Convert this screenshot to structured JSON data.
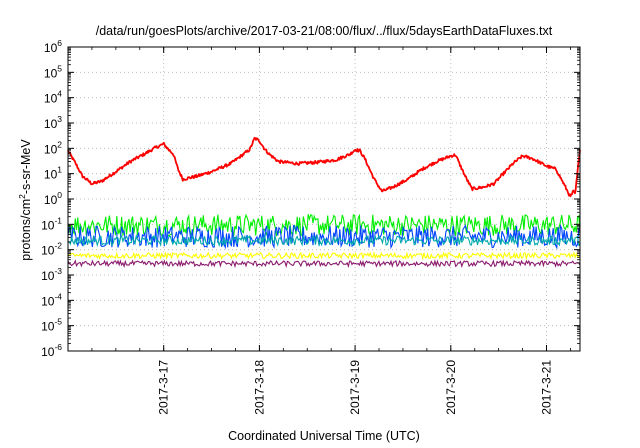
{
  "chart_data": {
    "type": "line",
    "title": "/data/run/goesPlots/archive/2017-03-21/08:00/flux/../flux/5daysEarthDataFluxes.txt",
    "xlabel": "Coordinated Universal Time (UTC)",
    "ylabel": {
      "pre": "protons/cm",
      "sup": "2",
      "post": "-s-sr-MeV"
    },
    "x_range_days": [
      0,
      5.35
    ],
    "x_ticks": [
      {
        "label": "2017-3-17",
        "day": 1.0
      },
      {
        "label": "2017-3-18",
        "day": 2.0
      },
      {
        "label": "2017-3-19",
        "day": 3.0
      },
      {
        "label": "2017-3-20",
        "day": 4.0
      },
      {
        "label": "2017-3-21",
        "day": 5.0
      }
    ],
    "y_scale": "log",
    "y_ticks": [
      {
        "base": "10",
        "exp": "-6",
        "log": -6
      },
      {
        "base": "10",
        "exp": "-5",
        "log": -5
      },
      {
        "base": "10",
        "exp": "-4",
        "log": -4
      },
      {
        "base": "10",
        "exp": "-3",
        "log": -3
      },
      {
        "base": "10",
        "exp": "-2",
        "log": -2
      },
      {
        "base": "10",
        "exp": "-1",
        "log": -1
      },
      {
        "base": "10",
        "exp": "0",
        "log": 0
      },
      {
        "base": "10",
        "exp": "1",
        "log": 1
      },
      {
        "base": "10",
        "exp": "2",
        "log": 2
      },
      {
        "base": "10",
        "exp": "3",
        "log": 3
      },
      {
        "base": "10",
        "exp": "4",
        "log": 4
      },
      {
        "base": "10",
        "exp": "5",
        "log": 5
      },
      {
        "base": "10",
        "exp": "6",
        "log": 6
      }
    ],
    "ylim": [
      1e-06,
      1000000.0
    ],
    "grid": true,
    "series": [
      {
        "color": "#ff0000",
        "noise_log": 0.06,
        "points": [
          [
            0.0,
            80
          ],
          [
            0.08,
            25
          ],
          [
            0.15,
            8
          ],
          [
            0.25,
            4
          ],
          [
            0.35,
            5
          ],
          [
            0.5,
            12
          ],
          [
            0.65,
            30
          ],
          [
            0.8,
            60
          ],
          [
            0.9,
            100
          ],
          [
            1.0,
            150
          ],
          [
            1.05,
            90
          ],
          [
            1.1,
            60
          ],
          [
            1.15,
            15
          ],
          [
            1.2,
            6
          ],
          [
            1.35,
            8
          ],
          [
            1.5,
            12
          ],
          [
            1.7,
            25
          ],
          [
            1.9,
            90
          ],
          [
            1.95,
            250
          ],
          [
            2.0,
            200
          ],
          [
            2.05,
            100
          ],
          [
            2.1,
            60
          ],
          [
            2.2,
            30
          ],
          [
            2.4,
            25
          ],
          [
            2.6,
            28
          ],
          [
            2.8,
            35
          ],
          [
            2.95,
            60
          ],
          [
            3.0,
            90
          ],
          [
            3.05,
            80
          ],
          [
            3.1,
            40
          ],
          [
            3.2,
            6
          ],
          [
            3.28,
            2
          ],
          [
            3.4,
            3
          ],
          [
            3.55,
            6
          ],
          [
            3.7,
            15
          ],
          [
            3.85,
            30
          ],
          [
            4.0,
            50
          ],
          [
            4.05,
            55
          ],
          [
            4.08,
            30
          ],
          [
            4.15,
            8
          ],
          [
            4.22,
            2.5
          ],
          [
            4.35,
            3
          ],
          [
            4.45,
            4
          ],
          [
            4.55,
            10
          ],
          [
            4.65,
            25
          ],
          [
            4.75,
            50
          ],
          [
            4.85,
            40
          ],
          [
            5.0,
            20
          ],
          [
            5.1,
            15
          ],
          [
            5.18,
            4
          ],
          [
            5.25,
            1.2
          ],
          [
            5.28,
            2
          ],
          [
            5.3,
            1.5
          ],
          [
            5.35,
            100
          ]
        ]
      },
      {
        "color": "#00ee00",
        "band": [
          0.035,
          0.25
        ]
      },
      {
        "color": "#0044ff",
        "band": [
          0.012,
          0.09
        ]
      },
      {
        "color": "#00aaaa",
        "band": [
          0.015,
          0.035
        ]
      },
      {
        "color": "#ffff00",
        "band": [
          0.0045,
          0.0075
        ]
      },
      {
        "color": "#8b1a6b",
        "band": [
          0.0022,
          0.0036
        ]
      }
    ]
  }
}
